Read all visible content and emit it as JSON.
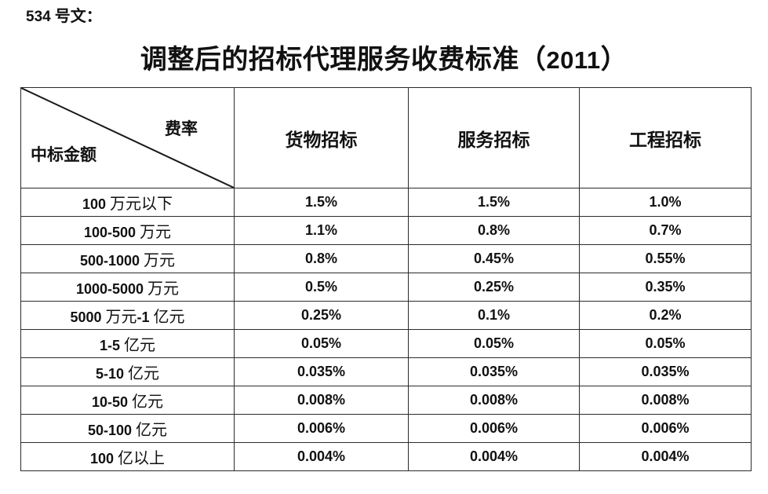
{
  "page": {
    "doc_number": "534 号文：",
    "title": "调整后的招标代理服务收费标准（2011）"
  },
  "fee_table": {
    "corner": {
      "top_right_label": "费率",
      "bottom_left_label": "中标金额"
    },
    "column_headers": [
      "货物招标",
      "服务招标",
      "工程招标"
    ],
    "rows": [
      {
        "amount": "100 万元以下",
        "rates": [
          "1.5%",
          "1.5%",
          "1.0%"
        ]
      },
      {
        "amount": "100-500 万元",
        "rates": [
          "1.1%",
          "0.8%",
          "0.7%"
        ]
      },
      {
        "amount": "500-1000 万元",
        "rates": [
          "0.8%",
          "0.45%",
          "0.55%"
        ]
      },
      {
        "amount": "1000-5000 万元",
        "rates": [
          "0.5%",
          "0.25%",
          "0.35%"
        ]
      },
      {
        "amount": "5000 万元-1 亿元",
        "rates": [
          "0.25%",
          "0.1%",
          "0.2%"
        ]
      },
      {
        "amount": "1-5 亿元",
        "rates": [
          "0.05%",
          "0.05%",
          "0.05%"
        ]
      },
      {
        "amount": "5-10 亿元",
        "rates": [
          "0.035%",
          "0.035%",
          "0.035%"
        ]
      },
      {
        "amount": "10-50 亿元",
        "rates": [
          "0.008%",
          "0.008%",
          "0.008%"
        ]
      },
      {
        "amount": "50-100 亿元",
        "rates": [
          "0.006%",
          "0.006%",
          "0.006%"
        ]
      },
      {
        "amount": "100 亿以上",
        "rates": [
          "0.004%",
          "0.004%",
          "0.004%"
        ]
      }
    ]
  },
  "colors": {
    "text": "#111111",
    "border": "#2b2b2b",
    "background": "#ffffff"
  }
}
